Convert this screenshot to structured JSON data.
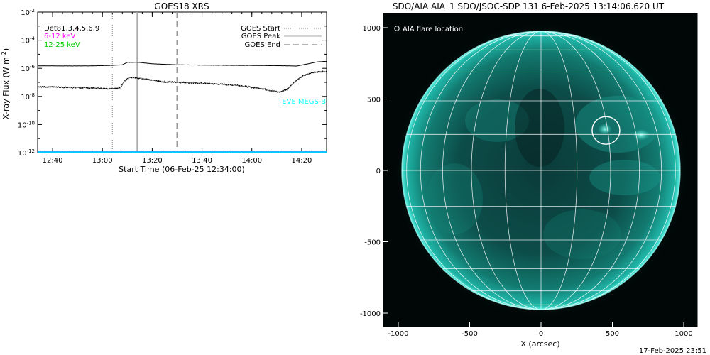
{
  "left_chart": {
    "title": "GOES18 XRS",
    "ylabel": "X-ray Flux (W m",
    "ylabel_sup": "-2",
    "ylabel_close": ")",
    "xlabel": "Start Time (06-Feb-25 12:34:00)",
    "legend": {
      "start": "GOES Start",
      "peak": "GOES Peak",
      "end": "GOES End"
    },
    "det_label": "Det81,3,4,5,6,9",
    "band1": "6-12 keV",
    "band2": "12-25 keV",
    "eve_label": "EVE MEGS-B",
    "colors": {
      "band1": "#ff00ff",
      "band2": "#00cc00",
      "eve": "#00ffff",
      "baseline": "#00ccff"
    }
  },
  "right_chart": {
    "title": "SDO/AIA AIA_1 SDO/JSOC-SDP 131  6-Feb-2025 13:14:06.620 UT",
    "legend": "AIA flare location",
    "xlabel": "X (arcsec)",
    "flare": {
      "x": 455,
      "y": 280,
      "radius_arcsec": 100
    },
    "disk_radius_arcsec": 975,
    "colors": {
      "disk": "#0a6f66",
      "limb": "#25d8c8"
    }
  },
  "footer": {
    "timestamp": "17-Feb-2025 23:51"
  },
  "chart_data": [
    {
      "type": "line",
      "title": "GOES18 XRS",
      "xlabel": "Start Time (06-Feb-25 12:34:00)",
      "ylabel": "X-ray Flux (W m-2)",
      "xlim_minutes": [
        0,
        116
      ],
      "ylim_log10": [
        -12,
        -2
      ],
      "ylog": true,
      "xticks": [
        {
          "t": 6,
          "label": "12:40"
        },
        {
          "t": 26,
          "label": "13:00"
        },
        {
          "t": 46,
          "label": "13:20"
        },
        {
          "t": 66,
          "label": "13:40"
        },
        {
          "t": 86,
          "label": "14:00"
        },
        {
          "t": 106,
          "label": "14:20"
        }
      ],
      "yticks": [
        {
          "exp": -2,
          "base": "10",
          "sup": "-2"
        },
        {
          "exp": -4,
          "base": "10",
          "sup": "-4"
        },
        {
          "exp": -6,
          "base": "10",
          "sup": "-6"
        },
        {
          "exp": -8,
          "base": "10",
          "sup": "-8"
        },
        {
          "exp": -10,
          "base": "10",
          "sup": "-10"
        },
        {
          "exp": -12,
          "base": "10",
          "sup": "-12"
        }
      ],
      "events": {
        "start_t": 30,
        "peak_t": 40,
        "end_t": 56
      },
      "series": [
        {
          "name": "GOES Peak",
          "log10_values": [
            [
              0,
              -5.82
            ],
            [
              10,
              -5.83
            ],
            [
              20,
              -5.83
            ],
            [
              28,
              -5.8
            ],
            [
              34,
              -5.75
            ],
            [
              36,
              -5.58
            ],
            [
              40,
              -5.57
            ],
            [
              46,
              -5.68
            ],
            [
              56,
              -5.75
            ],
            [
              70,
              -5.78
            ],
            [
              90,
              -5.8
            ],
            [
              100,
              -5.82
            ],
            [
              104,
              -5.84
            ],
            [
              108,
              -5.7
            ],
            [
              112,
              -5.55
            ],
            [
              116,
              -5.5
            ]
          ]
        },
        {
          "name": "EVE MEGS-B",
          "log10_values": [
            [
              0,
              -7.3
            ],
            [
              10,
              -7.35
            ],
            [
              20,
              -7.4
            ],
            [
              28,
              -7.45
            ],
            [
              33,
              -7.4
            ],
            [
              35,
              -6.9
            ],
            [
              37,
              -6.62
            ],
            [
              40,
              -6.7
            ],
            [
              50,
              -6.95
            ],
            [
              60,
              -7.02
            ],
            [
              70,
              -7.1
            ],
            [
              80,
              -7.2
            ],
            [
              90,
              -7.45
            ],
            [
              97,
              -7.7
            ],
            [
              100,
              -7.5
            ],
            [
              103,
              -7.0
            ],
            [
              106,
              -6.6
            ],
            [
              110,
              -6.3
            ],
            [
              116,
              -6.2
            ]
          ]
        },
        {
          "name": "6-12 keV",
          "log10_values": [
            [
              0,
              -11.92
            ],
            [
              116,
              -11.92
            ]
          ]
        },
        {
          "name": "12-25 keV",
          "log10_values": [
            [
              0,
              -11.96
            ],
            [
              116,
              -11.96
            ]
          ]
        }
      ]
    },
    {
      "type": "scatter",
      "title": "SDO/AIA AIA_1 SDO/JSOC-SDP 131  6-Feb-2025 13:14:06.620 UT",
      "xlabel": "X (arcsec)",
      "xlim": [
        -1100,
        1100
      ],
      "ylim": [
        -1100,
        1100
      ],
      "xticks": [
        -1000,
        -500,
        0,
        500,
        1000
      ],
      "yticks": [
        1000,
        500,
        0,
        -500,
        -1000
      ],
      "grid_spacing_deg": 15,
      "series": [
        {
          "name": "AIA flare location",
          "points": [
            [
              455,
              280
            ]
          ]
        }
      ]
    }
  ]
}
